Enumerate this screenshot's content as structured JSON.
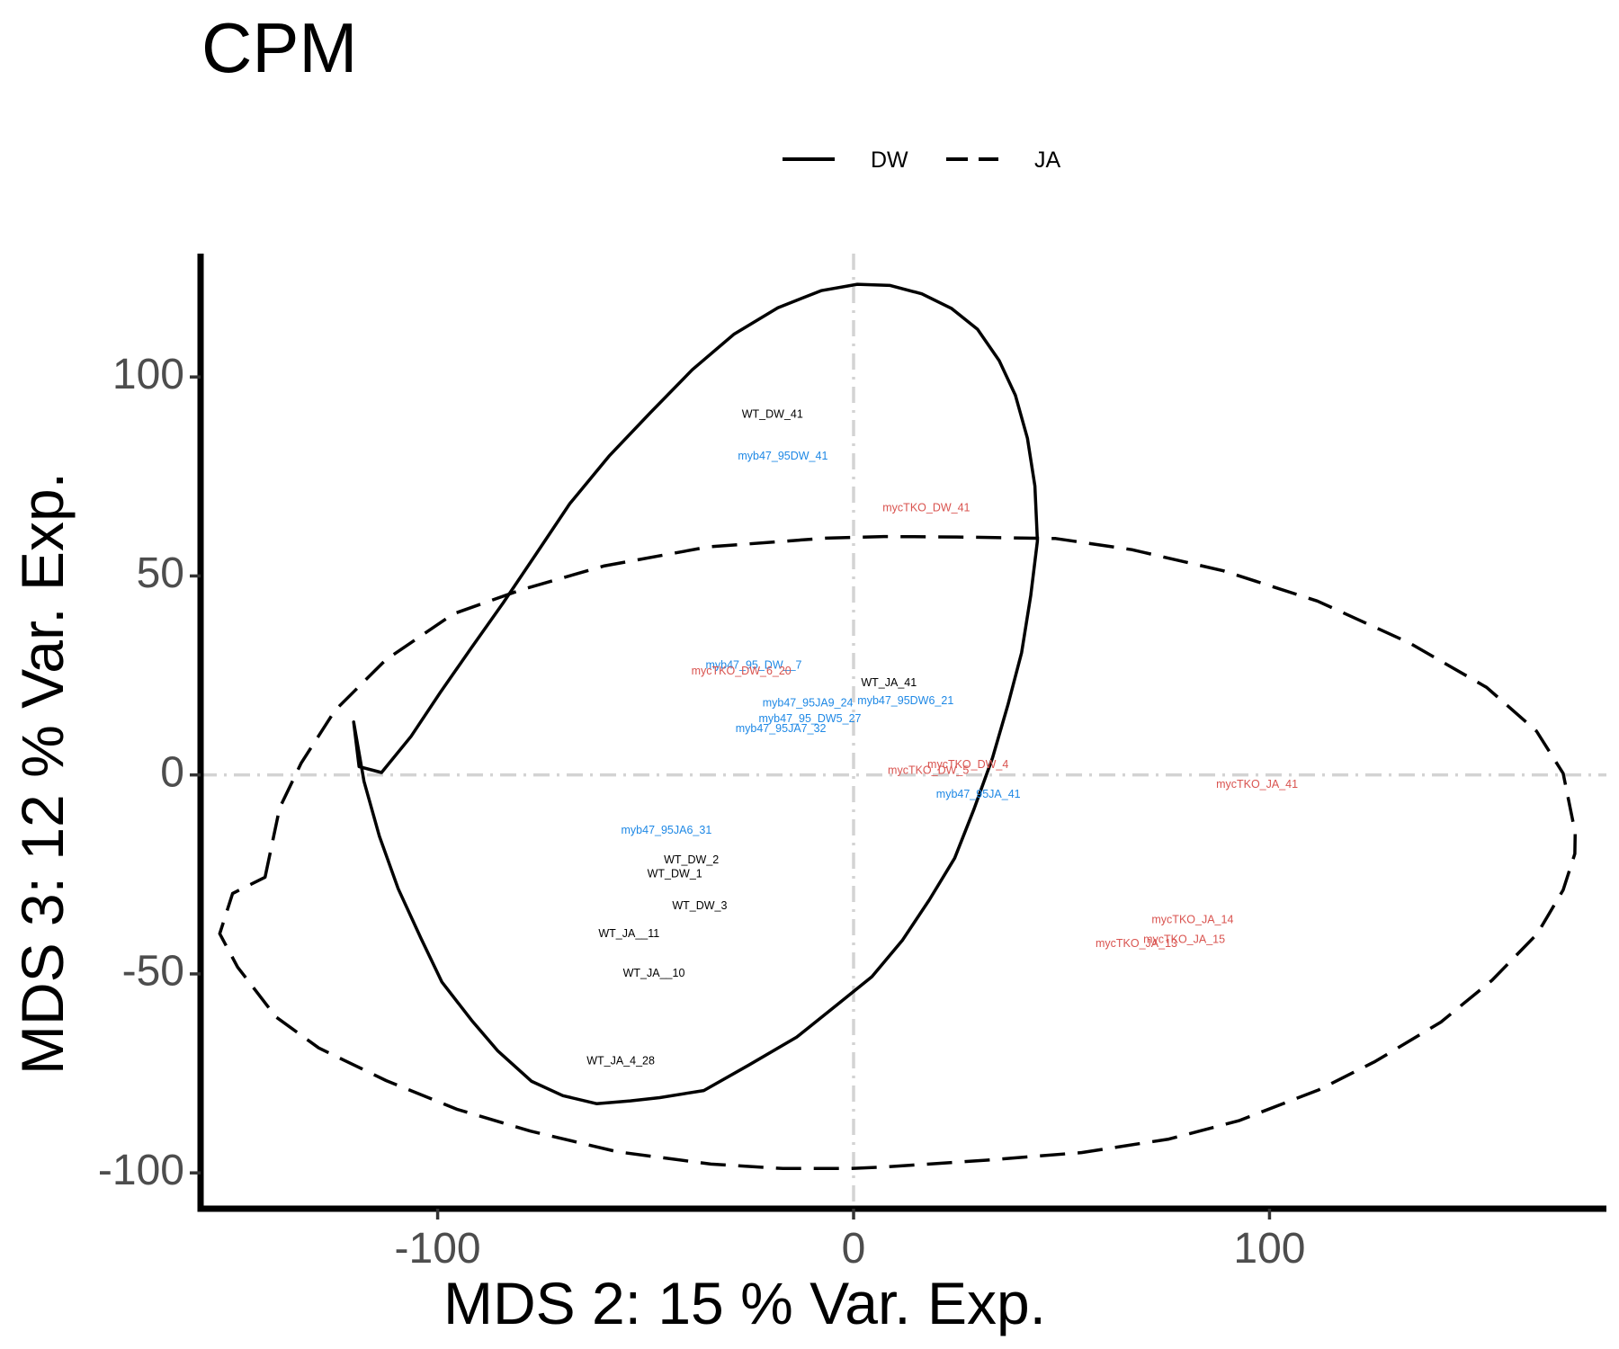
{
  "chart_data": {
    "type": "scatter",
    "title": "CPM",
    "xlabel": "MDS 2: 15 % Var. Exp.",
    "ylabel": "MDS 3: 12 % Var. Exp.",
    "xlim": [
      -157,
      181
    ],
    "ylim": [
      -109,
      131
    ],
    "xticks": [
      -100,
      0,
      100
    ],
    "yticks": [
      -100,
      -50,
      0,
      50,
      100
    ],
    "xtick_labels": [
      "-100",
      "0",
      "100"
    ],
    "ytick_labels": [
      "-100",
      "-50",
      "0",
      "50",
      "100"
    ],
    "grid": false,
    "reference_lines": {
      "x": 0,
      "y": 0,
      "color": "#d3d3d3",
      "style": "dashdot"
    },
    "legend": {
      "position": "top",
      "items": [
        {
          "label": "DW",
          "linestyle": "solid"
        },
        {
          "label": "JA",
          "linestyle": "dashed"
        }
      ]
    },
    "group_colors": {
      "WT": "#000000",
      "myb47_95": "#1e88e5",
      "mycTKO": "#d9534f"
    },
    "ellipses": [
      {
        "group": "DW",
        "linestyle": "solid",
        "points": [
          [
            -120.2,
            13.3
          ],
          [
            -117.7,
            -1.6
          ],
          [
            -114.0,
            -15.4
          ],
          [
            -109.5,
            -28.6
          ],
          [
            -104.0,
            -41.1
          ],
          [
            -99.0,
            -52.0
          ],
          [
            -91.8,
            -61.7
          ],
          [
            -85.6,
            -69.3
          ],
          [
            -77.4,
            -77.0
          ],
          [
            -69.9,
            -80.6
          ],
          [
            -61.8,
            -82.6
          ],
          [
            -53.7,
            -81.9
          ],
          [
            -46.6,
            -81.1
          ],
          [
            -36.0,
            -79.3
          ],
          [
            -25.2,
            -72.9
          ],
          [
            -13.7,
            -65.9
          ],
          [
            -4.0,
            -57.8
          ],
          [
            4.4,
            -50.7
          ],
          [
            11.7,
            -41.6
          ],
          [
            18.2,
            -31.4
          ],
          [
            24.3,
            -20.9
          ],
          [
            28.9,
            -8.7
          ],
          [
            33.4,
            4.3
          ],
          [
            37.1,
            17.6
          ],
          [
            40.4,
            30.7
          ],
          [
            42.6,
            45.1
          ],
          [
            44.2,
            58.8
          ],
          [
            43.6,
            72.6
          ],
          [
            41.8,
            84.6
          ],
          [
            38.9,
            95.4
          ],
          [
            35.0,
            104.1
          ],
          [
            29.8,
            112.0
          ],
          [
            23.6,
            117.2
          ],
          [
            16.4,
            120.9
          ],
          [
            8.8,
            123.0
          ],
          [
            0.9,
            123.3
          ],
          [
            -7.8,
            121.7
          ],
          [
            -18.2,
            117.4
          ],
          [
            -28.8,
            110.7
          ],
          [
            -38.8,
            101.8
          ],
          [
            -48.8,
            91.1
          ],
          [
            -58.8,
            80.1
          ],
          [
            -68.2,
            68.2
          ],
          [
            -76.4,
            55.4
          ],
          [
            -84.2,
            43.3
          ],
          [
            -92.0,
            31.8
          ],
          [
            -99.4,
            20.7
          ],
          [
            -106.4,
            9.7
          ],
          [
            -113.5,
            0.6
          ],
          [
            -118.9,
            2.1
          ],
          [
            -120.2,
            13.3
          ]
        ]
      },
      {
        "group": "JA",
        "linestyle": "dashed",
        "points": [
          [
            -141.5,
            -25.7
          ],
          [
            -138.0,
            -8.3
          ],
          [
            -132.8,
            3.0
          ],
          [
            -124.7,
            16.2
          ],
          [
            -112.5,
            28.9
          ],
          [
            -96.2,
            40.5
          ],
          [
            -79.7,
            46.6
          ],
          [
            -60.1,
            52.5
          ],
          [
            -34.9,
            57.3
          ],
          [
            -6.7,
            59.5
          ],
          [
            7.3,
            59.9
          ],
          [
            24.8,
            59.8
          ],
          [
            48.6,
            59.4
          ],
          [
            66.9,
            56.6
          ],
          [
            88.9,
            51.3
          ],
          [
            111.5,
            43.7
          ],
          [
            133.6,
            33.2
          ],
          [
            152.2,
            22.0
          ],
          [
            164.2,
            11.0
          ],
          [
            170.6,
            0.4
          ],
          [
            173.5,
            -14.5
          ],
          [
            173.4,
            -19.8
          ],
          [
            170.6,
            -28.9
          ],
          [
            164.4,
            -39.9
          ],
          [
            153.5,
            -51.6
          ],
          [
            141.2,
            -62.1
          ],
          [
            125.4,
            -72.0
          ],
          [
            111.9,
            -79.1
          ],
          [
            92.6,
            -86.9
          ],
          [
            75.8,
            -91.5
          ],
          [
            54.8,
            -94.9
          ],
          [
            32.1,
            -96.8
          ],
          [
            7.9,
            -98.5
          ],
          [
            -0.6,
            -98.9
          ],
          [
            -17.0,
            -98.9
          ],
          [
            -34.3,
            -97.8
          ],
          [
            -56.8,
            -94.7
          ],
          [
            -77.7,
            -89.5
          ],
          [
            -95.4,
            -84.0
          ],
          [
            -112.4,
            -76.8
          ],
          [
            -128.6,
            -68.6
          ],
          [
            -138.9,
            -60.8
          ],
          [
            -148.1,
            -48.3
          ],
          [
            -152.4,
            -39.9
          ],
          [
            -149.3,
            -29.8
          ],
          [
            -141.5,
            -25.7
          ]
        ]
      }
    ],
    "points": [
      {
        "label": "WT_DW_41",
        "x": -19.5,
        "y": 90.5,
        "group": "WT"
      },
      {
        "label": "myb47_95DW_41",
        "x": -17,
        "y": 80,
        "group": "myb47_95"
      },
      {
        "label": "mycTKO_DW_41",
        "x": 17.5,
        "y": 67,
        "group": "mycTKO"
      },
      {
        "label": "myb47_95_DW__7",
        "x": -24,
        "y": 27.5,
        "group": "myb47_95"
      },
      {
        "label": "mycTKO_DW_6_20",
        "x": -27,
        "y": 26,
        "group": "mycTKO"
      },
      {
        "label": "WT_JA_41",
        "x": 8.5,
        "y": 23,
        "group": "WT"
      },
      {
        "label": "myb47_95JA9_24",
        "x": -11,
        "y": 18,
        "group": "myb47_95"
      },
      {
        "label": "myb47_95DW6_21",
        "x": 12.5,
        "y": 18.5,
        "group": "myb47_95"
      },
      {
        "label": "myb47_95_DW5_27",
        "x": -10.5,
        "y": 14,
        "group": "myb47_95"
      },
      {
        "label": "myb47_95JA7_32",
        "x": -17.5,
        "y": 11.5,
        "group": "myb47_95"
      },
      {
        "label": "mycTKO_DW_4",
        "x": 27.5,
        "y": 2.5,
        "group": "mycTKO"
      },
      {
        "label": "mycTKO_DW_5",
        "x": 18,
        "y": 1,
        "group": "mycTKO"
      },
      {
        "label": "myb47_95JA_41",
        "x": 30,
        "y": -5,
        "group": "myb47_95"
      },
      {
        "label": "mycTKO_JA_41",
        "x": 97,
        "y": -2.5,
        "group": "mycTKO"
      },
      {
        "label": "myb47_95JA6_31",
        "x": -45,
        "y": -14,
        "group": "myb47_95"
      },
      {
        "label": "WT_DW_2",
        "x": -39,
        "y": -21.5,
        "group": "WT"
      },
      {
        "label": "WT_DW_1",
        "x": -43,
        "y": -25,
        "group": "WT"
      },
      {
        "label": "WT_DW_3",
        "x": -37,
        "y": -33,
        "group": "WT"
      },
      {
        "label": "WT_JA__11",
        "x": -54,
        "y": -40,
        "group": "WT"
      },
      {
        "label": "WT_JA__10",
        "x": -48,
        "y": -50,
        "group": "WT"
      },
      {
        "label": "WT_JA_4_28",
        "x": -56,
        "y": -72,
        "group": "WT"
      },
      {
        "label": "mycTKO_JA_14",
        "x": 81.5,
        "y": -36.5,
        "group": "mycTKO"
      },
      {
        "label": "mycTKO_JA_15",
        "x": 79.5,
        "y": -41.5,
        "group": "mycTKO"
      },
      {
        "label": "mycTKO_JA_13",
        "x": 68,
        "y": -42.5,
        "group": "mycTKO"
      }
    ]
  }
}
